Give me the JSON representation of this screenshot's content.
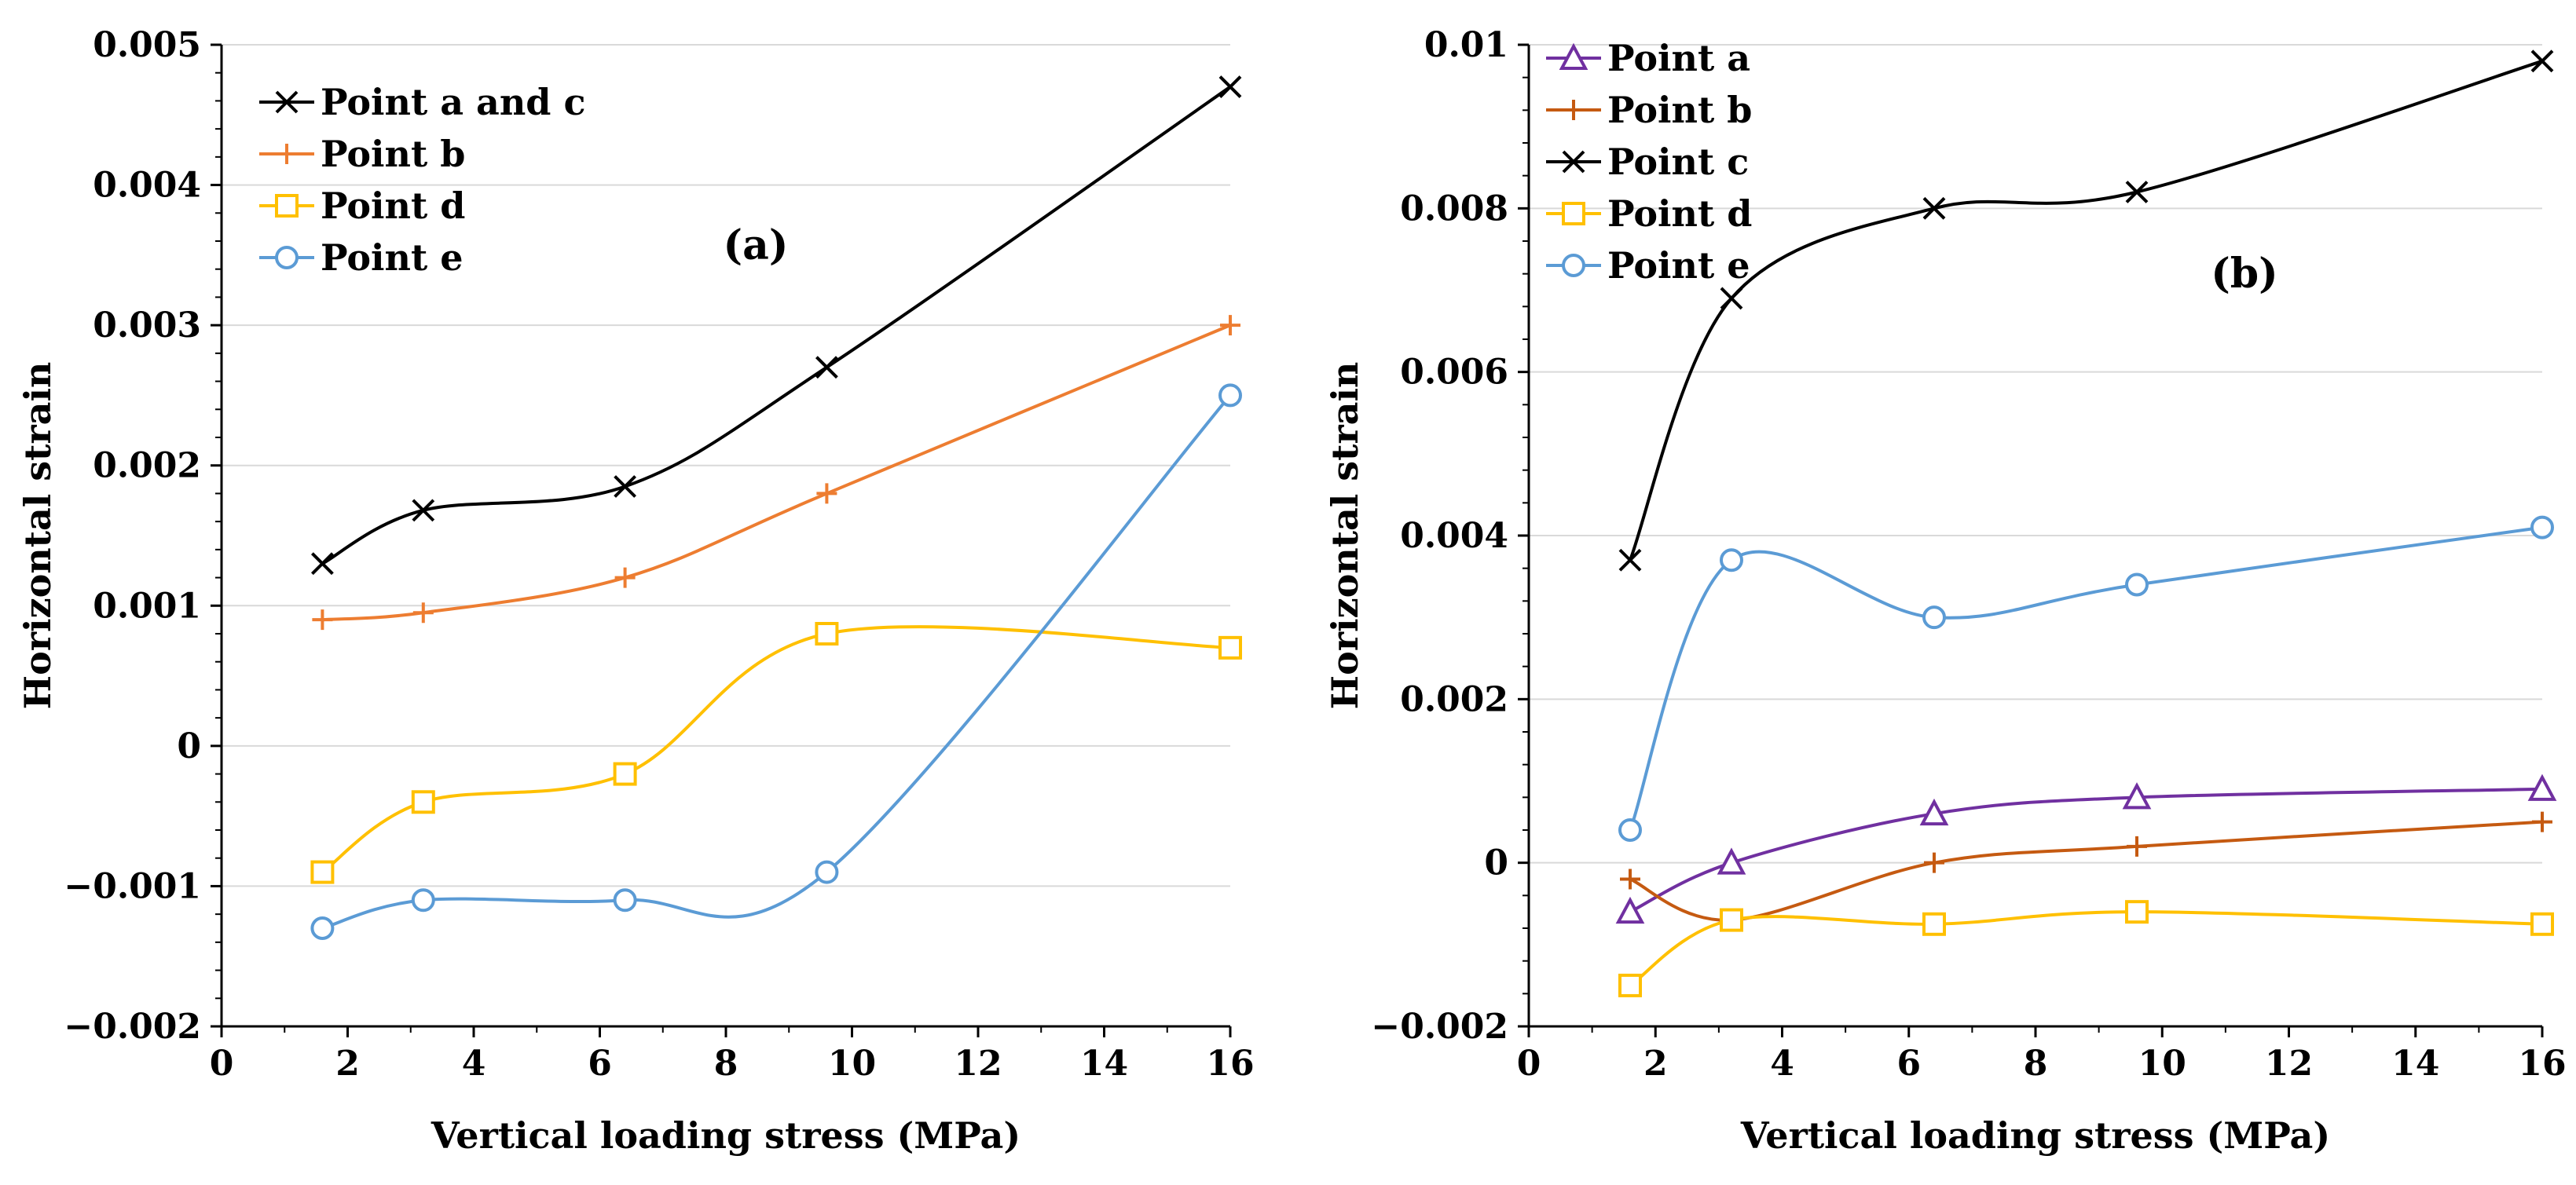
{
  "chart_data": [
    {
      "type": "line",
      "panel_label": "(a)",
      "xlabel": "Vertical loading stress (MPa)",
      "ylabel": "Horizontal strain",
      "xlim": [
        0,
        16
      ],
      "ylim": [
        -0.002,
        0.005
      ],
      "grid": "horizontal",
      "legend_placement": "top-left",
      "x_ticks": [
        0,
        2,
        4,
        6,
        8,
        10,
        12,
        14,
        16
      ],
      "x_tick_labels": [
        "0",
        "2",
        "4",
        "6",
        "8",
        "10",
        "12",
        "14",
        "16"
      ],
      "y_ticks": [
        -0.002,
        -0.001,
        0,
        0.001,
        0.002,
        0.003,
        0.004,
        0.005
      ],
      "y_tick_labels": [
        "−0.002",
        "−0.001",
        "0",
        "0.001",
        "0.002",
        "0.003",
        "0.004",
        "0.005"
      ],
      "series": [
        {
          "name": "Point a and c",
          "marker": "x",
          "color": "#000000",
          "x": [
            1.6,
            3.2,
            6.4,
            9.6,
            16
          ],
          "y": [
            0.0013,
            0.00168,
            0.00185,
            0.0027,
            0.0047
          ]
        },
        {
          "name": "Point b",
          "marker": "plus",
          "color": "#ED7D31",
          "x": [
            1.6,
            3.2,
            6.4,
            9.6,
            16
          ],
          "y": [
            0.0009,
            0.00095,
            0.0012,
            0.0018,
            0.003
          ]
        },
        {
          "name": "Point d",
          "marker": "square",
          "color": "#FFC000",
          "x": [
            1.6,
            3.2,
            6.4,
            9.6,
            16
          ],
          "y": [
            -0.0009,
            -0.0004,
            -0.0002,
            0.0008,
            0.0007
          ]
        },
        {
          "name": "Point e",
          "marker": "circle",
          "color": "#5B9BD5",
          "x": [
            1.6,
            3.2,
            6.4,
            9.6,
            16
          ],
          "y": [
            -0.0013,
            -0.0011,
            -0.0011,
            -0.0009,
            0.0025
          ]
        }
      ]
    },
    {
      "type": "line",
      "panel_label": "(b)",
      "xlabel": "Vertical loading stress (MPa)",
      "ylabel": "Horizontal strain",
      "xlim": [
        0,
        16
      ],
      "ylim": [
        -0.002,
        0.01
      ],
      "grid": "horizontal",
      "legend_placement": "top-left",
      "x_ticks": [
        0,
        2,
        4,
        6,
        8,
        10,
        12,
        14,
        16
      ],
      "x_tick_labels": [
        "0",
        "2",
        "4",
        "6",
        "8",
        "10",
        "12",
        "14",
        "16"
      ],
      "y_ticks": [
        -0.002,
        0,
        0.002,
        0.004,
        0.006,
        0.008,
        0.01
      ],
      "y_tick_labels": [
        "−0.002",
        "0",
        "0.002",
        "0.004",
        "0.006",
        "0.008",
        "0.01"
      ],
      "series": [
        {
          "name": "Point a",
          "marker": "triangle",
          "color": "#7030A0",
          "x": [
            1.6,
            3.2,
            6.4,
            9.6,
            16
          ],
          "y": [
            -0.0006,
            0.0,
            0.0006,
            0.0008,
            0.0009
          ]
        },
        {
          "name": "Point b",
          "marker": "plus",
          "color": "#C55A11",
          "x": [
            1.6,
            3.2,
            6.4,
            9.6,
            16
          ],
          "y": [
            -0.0002,
            -0.0007,
            0.0,
            0.0002,
            0.0005
          ]
        },
        {
          "name": "Point c",
          "marker": "x",
          "color": "#000000",
          "x": [
            1.6,
            3.2,
            6.4,
            9.6,
            16
          ],
          "y": [
            0.0037,
            0.0069,
            0.008,
            0.0082,
            0.0098
          ]
        },
        {
          "name": "Point d",
          "marker": "square",
          "color": "#FFC000",
          "x": [
            1.6,
            3.2,
            6.4,
            9.6,
            16
          ],
          "y": [
            -0.0015,
            -0.0007,
            -0.00075,
            -0.0006,
            -0.00075
          ]
        },
        {
          "name": "Point e",
          "marker": "circle",
          "color": "#5B9BD5",
          "x": [
            1.6,
            3.2,
            6.4,
            9.6,
            16
          ],
          "y": [
            0.0004,
            0.0037,
            0.003,
            0.0034,
            0.0041
          ]
        }
      ]
    }
  ]
}
